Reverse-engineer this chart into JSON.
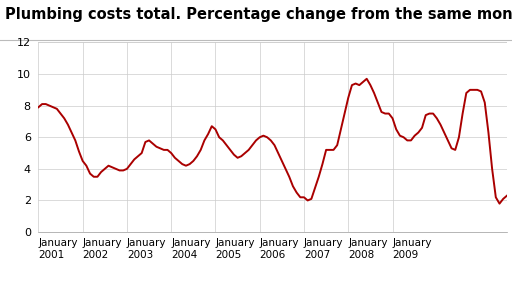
{
  "title": "Plumbing costs total. Percentage change from the same month one year before",
  "title_fontsize": 10.5,
  "background_color": "#ffffff",
  "line_color": "#aa0000",
  "line_width": 1.4,
  "ylim": [
    0,
    12
  ],
  "yticks": [
    0,
    2,
    4,
    6,
    8,
    10,
    12
  ],
  "xtick_labels": [
    "January\n2001",
    "January\n2002",
    "January\n2003",
    "January\n2004",
    "January\n2005",
    "January\n2006",
    "January\n2007",
    "January\n2008",
    "January\n2009"
  ],
  "grid_color": "#cccccc",
  "values": [
    7.9,
    8.1,
    8.1,
    8.0,
    7.9,
    7.8,
    7.5,
    7.2,
    6.8,
    6.3,
    5.8,
    5.1,
    4.5,
    4.2,
    3.7,
    3.5,
    3.5,
    3.8,
    4.0,
    4.2,
    4.1,
    4.0,
    3.9,
    3.9,
    4.0,
    4.3,
    4.6,
    4.8,
    5.0,
    5.7,
    5.8,
    5.6,
    5.4,
    5.3,
    5.2,
    5.2,
    5.0,
    4.7,
    4.5,
    4.3,
    4.2,
    4.3,
    4.5,
    4.8,
    5.2,
    5.8,
    6.2,
    6.7,
    6.5,
    6.0,
    5.8,
    5.5,
    5.2,
    4.9,
    4.7,
    4.8,
    5.0,
    5.2,
    5.5,
    5.8,
    6.0,
    6.1,
    6.0,
    5.8,
    5.5,
    5.0,
    4.5,
    4.0,
    3.5,
    2.9,
    2.5,
    2.2,
    2.2,
    2.0,
    2.1,
    2.8,
    3.5,
    4.3,
    5.2,
    5.2,
    5.2,
    5.5,
    6.5,
    7.5,
    8.5,
    9.3,
    9.4,
    9.3,
    9.5,
    9.7,
    9.3,
    8.8,
    8.2,
    7.6,
    7.5,
    7.5,
    7.2,
    6.5,
    6.1,
    6.0,
    5.8,
    5.8,
    6.1,
    6.3,
    6.6,
    7.4,
    7.5,
    7.5,
    7.2,
    6.8,
    6.3,
    5.8,
    5.3,
    5.2,
    6.0,
    7.5,
    8.8,
    9.0,
    9.0,
    9.0,
    8.9,
    8.2,
    6.3,
    4.0,
    2.2,
    1.8,
    2.1,
    2.3
  ]
}
